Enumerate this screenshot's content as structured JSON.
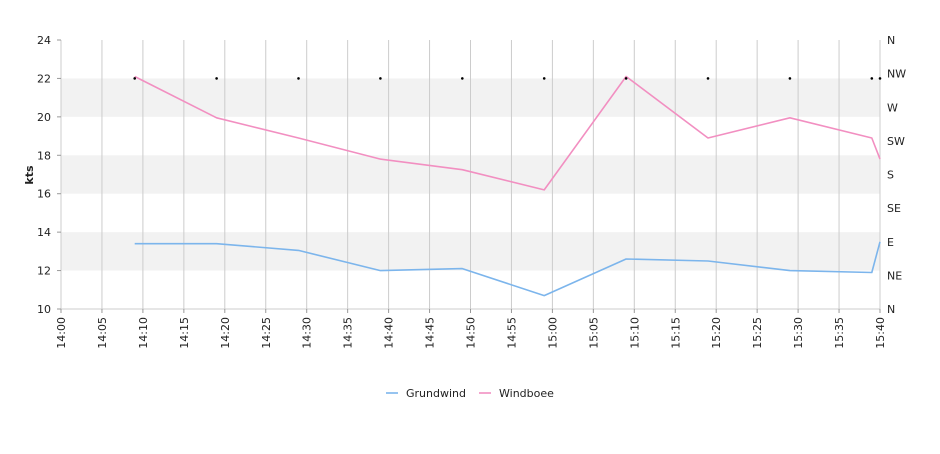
{
  "chart_data": {
    "type": "line",
    "ylabel": "kts",
    "ylim": [
      10,
      24
    ],
    "yticks": [
      "10",
      "12",
      "14",
      "16",
      "18",
      "20",
      "22",
      "24"
    ],
    "xlim": [
      "14:00",
      "15:40"
    ],
    "xticks": [
      "14:00",
      "14:05",
      "14:10",
      "14:15",
      "14:20",
      "14:25",
      "14:30",
      "14:35",
      "14:40",
      "14:45",
      "14:50",
      "14:55",
      "15:00",
      "15:05",
      "15:10",
      "15:15",
      "15:20",
      "15:25",
      "15:30",
      "15:35",
      "15:40"
    ],
    "direction_ticks": [
      "N",
      "NW",
      "W",
      "SW",
      "S",
      "SE",
      "E",
      "NE",
      "N"
    ],
    "bands": [
      [
        12,
        14
      ],
      [
        16,
        18
      ],
      [
        20,
        22
      ]
    ],
    "colors": {
      "band": "#f2f2f2",
      "grid": "#cccccc",
      "axis": "#cccccc"
    },
    "series": [
      {
        "name": "Grundwind",
        "color": "#7cb5ec",
        "points": [
          [
            "14:09",
            13.4
          ],
          [
            "14:19",
            13.4
          ],
          [
            "14:29",
            13.05
          ],
          [
            "14:39",
            12.0
          ],
          [
            "14:49",
            12.1
          ],
          [
            "14:59",
            10.7
          ],
          [
            "15:09",
            12.6
          ],
          [
            "15:19",
            12.5
          ],
          [
            "15:29",
            12.0
          ],
          [
            "15:39",
            11.9
          ],
          [
            "15:40",
            13.5
          ]
        ]
      },
      {
        "name": "Windboee",
        "color": "#f28fc1",
        "points": [
          [
            "14:09",
            22.1
          ],
          [
            "14:19",
            19.95
          ],
          [
            "14:29",
            18.9
          ],
          [
            "14:39",
            17.8
          ],
          [
            "14:49",
            17.25
          ],
          [
            "14:59",
            16.2
          ],
          [
            "15:09",
            22.1
          ],
          [
            "15:19",
            18.9
          ],
          [
            "15:29",
            19.95
          ],
          [
            "15:39",
            18.9
          ],
          [
            "15:40",
            17.8
          ]
        ]
      }
    ],
    "direction_markers": {
      "color": "#000000",
      "times": [
        "14:09",
        "14:19",
        "14:29",
        "14:39",
        "14:49",
        "14:59",
        "15:09",
        "15:19",
        "15:29",
        "15:39",
        "15:40"
      ],
      "values": [
        22,
        22,
        22,
        22,
        22,
        22,
        22,
        22,
        22,
        22,
        22
      ]
    },
    "legend_position": "bottom-center"
  }
}
